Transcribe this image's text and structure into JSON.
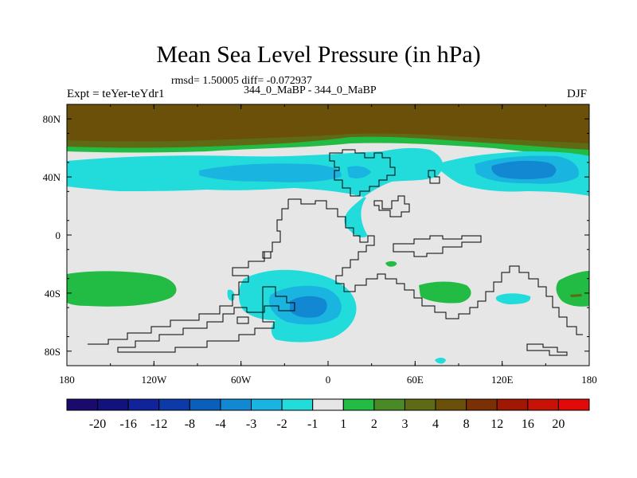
{
  "chart_data": {
    "type": "heatmap",
    "subtype": "filled-contour-map",
    "title": "Mean Sea Level Pressure (in hPa)",
    "stats": "rmsd= 1.50005 diff= -0.072937",
    "left_label": "Expt = teYer-teYdr1",
    "center_label": "344_0_MaBP - 344_0_MaBP",
    "right_label": "DJF",
    "xlim": [
      -180,
      180
    ],
    "ylim": [
      -90,
      90
    ],
    "x_ticks": [
      {
        "value": -180,
        "label": "180"
      },
      {
        "value": -120,
        "label": "120W"
      },
      {
        "value": -60,
        "label": "60W"
      },
      {
        "value": 0,
        "label": "0"
      },
      {
        "value": 60,
        "label": "60E"
      },
      {
        "value": 120,
        "label": "120E"
      },
      {
        "value": 180,
        "label": "180"
      }
    ],
    "y_ticks": [
      {
        "value": 80,
        "label": "80N"
      },
      {
        "value": 40,
        "label": "40N"
      },
      {
        "value": 0,
        "label": "0"
      },
      {
        "value": -40,
        "label": "40S"
      },
      {
        "value": -80,
        "label": "80S"
      }
    ],
    "colorbar": {
      "levels": [
        "-20",
        "-16",
        "-12",
        "-8",
        "-4",
        "-3",
        "-2",
        "-1",
        "1",
        "2",
        "3",
        "4",
        "8",
        "12",
        "16",
        "20"
      ],
      "colors": [
        "#1a0a6e",
        "#12127e",
        "#10239a",
        "#0c3aa8",
        "#0a5fbc",
        "#1288d2",
        "#1ab4e0",
        "#22dcdc",
        "#e6e6e6",
        "#22bb44",
        "#4a8a26",
        "#5e6a14",
        "#6a5008",
        "#7a3004",
        "#a01804",
        "#c81208",
        "#e00a0a"
      ]
    },
    "regions": [
      {
        "name": "arctic-high",
        "level": "4 to 8",
        "lat": [
          60,
          90
        ],
        "lon": [
          -180,
          180
        ]
      },
      {
        "name": "north-atlantic-low",
        "level": "-3 to -2",
        "lat": [
          32,
          52
        ],
        "lon": [
          -180,
          40
        ]
      },
      {
        "name": "north-pacific-low",
        "level": "-4 to -3",
        "lat": [
          30,
          50
        ],
        "lon": [
          100,
          180
        ]
      },
      {
        "name": "southern-high-west",
        "level": "1 to 2",
        "lat": [
          -48,
          -27
        ],
        "lon": [
          -180,
          -120
        ]
      },
      {
        "name": "southern-low",
        "level": "-4 to -3",
        "lat": [
          -72,
          -28
        ],
        "lon": [
          -70,
          20
        ]
      },
      {
        "name": "southern-high-east",
        "level": "1 to 2",
        "lat": [
          -50,
          -32
        ],
        "lon": [
          60,
          180
        ]
      }
    ]
  }
}
